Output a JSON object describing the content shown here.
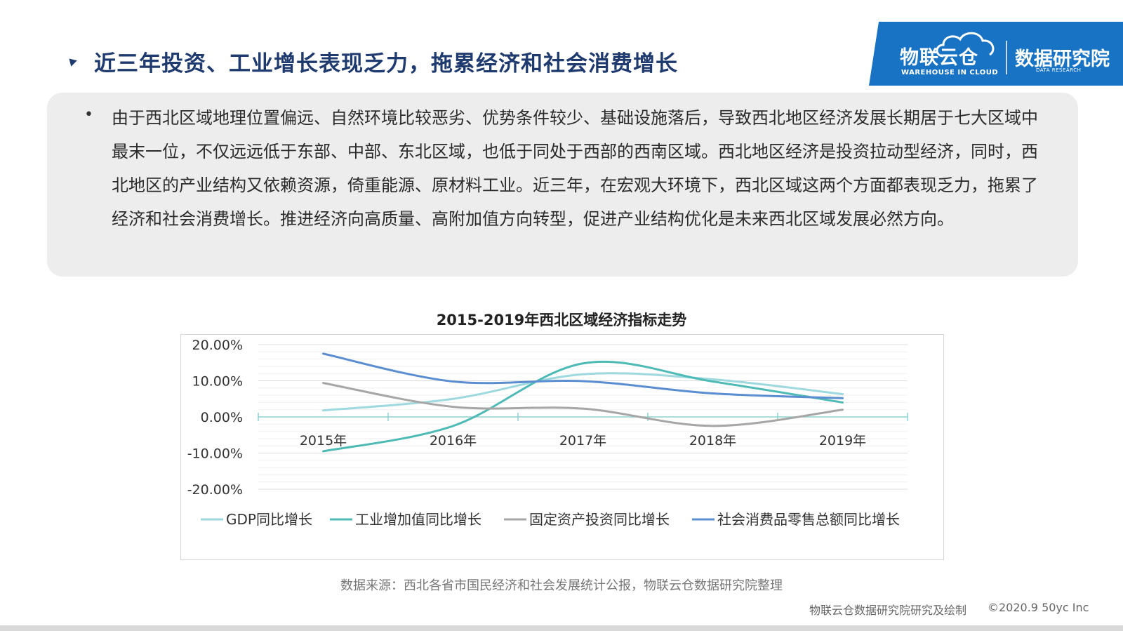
{
  "header": {
    "title": "近三年投资、工业增长表现乏力，拖累经济和社会消费增长"
  },
  "logo": {
    "main": "物联云仓",
    "sub": "WAREHOUSE IN CLOUD",
    "right": "数据研究院",
    "right_sub": "DATA RESEARCH"
  },
  "body": {
    "bullet": "•",
    "text": "由于西北区域地理位置偏远、自然环境比较恶劣、优势条件较少、基础设施落后，导致西北地区经济发展长期居于七大区域中最末一位，不仅远远低于东部、中部、东北区域，也低于同处于西部的西南区域。西北地区经济是投资拉动型经济，同时，西北地区的产业结构又依赖资源，倚重能源、原材料工业。近三年，在宏观大环境下，西北区域这两个方面都表现乏力，拖累了经济和社会消费增长。推进经济向高质量、高附加值方向转型，促进产业结构优化是未来西北区域发展必然方向。"
  },
  "chart_data": {
    "type": "line",
    "title": "2015-2019年西北区域经济指标走势",
    "categories": [
      "2015年",
      "2016年",
      "2017年",
      "2018年",
      "2019年"
    ],
    "ylim": [
      -20,
      20
    ],
    "yticks": [
      20,
      10,
      0,
      -10,
      -20
    ],
    "ytick_labels": [
      "20.00%",
      "10.00%",
      "0.00%",
      "-10.00%",
      "-20.00%"
    ],
    "grid": true,
    "smooth": true,
    "legend_position": "bottom",
    "series": [
      {
        "name": "GDP同比增长",
        "color": "#9dd9de",
        "values": [
          1.8,
          5.0,
          11.8,
          10.4,
          6.3
        ]
      },
      {
        "name": "工业增加值同比增长",
        "color": "#4dbab6",
        "values": [
          -9.5,
          -2.5,
          14.8,
          9.8,
          4.0
        ]
      },
      {
        "name": "固定资产投资同比增长",
        "color": "#a6a6a6",
        "values": [
          9.4,
          2.8,
          2.3,
          -2.5,
          2.0
        ]
      },
      {
        "name": "社会消费品零售总额同比增长",
        "color": "#5b8dd1",
        "values": [
          17.5,
          9.8,
          9.9,
          6.5,
          5.2
        ]
      }
    ]
  },
  "source_note": "数据来源：西北各省市国民经济和社会发展统计公报，物联云仓数据研究院整理",
  "footer": {
    "left": "物联云仓数据研究院研究及绘制",
    "right": "©2020.9 50yc Inc"
  }
}
